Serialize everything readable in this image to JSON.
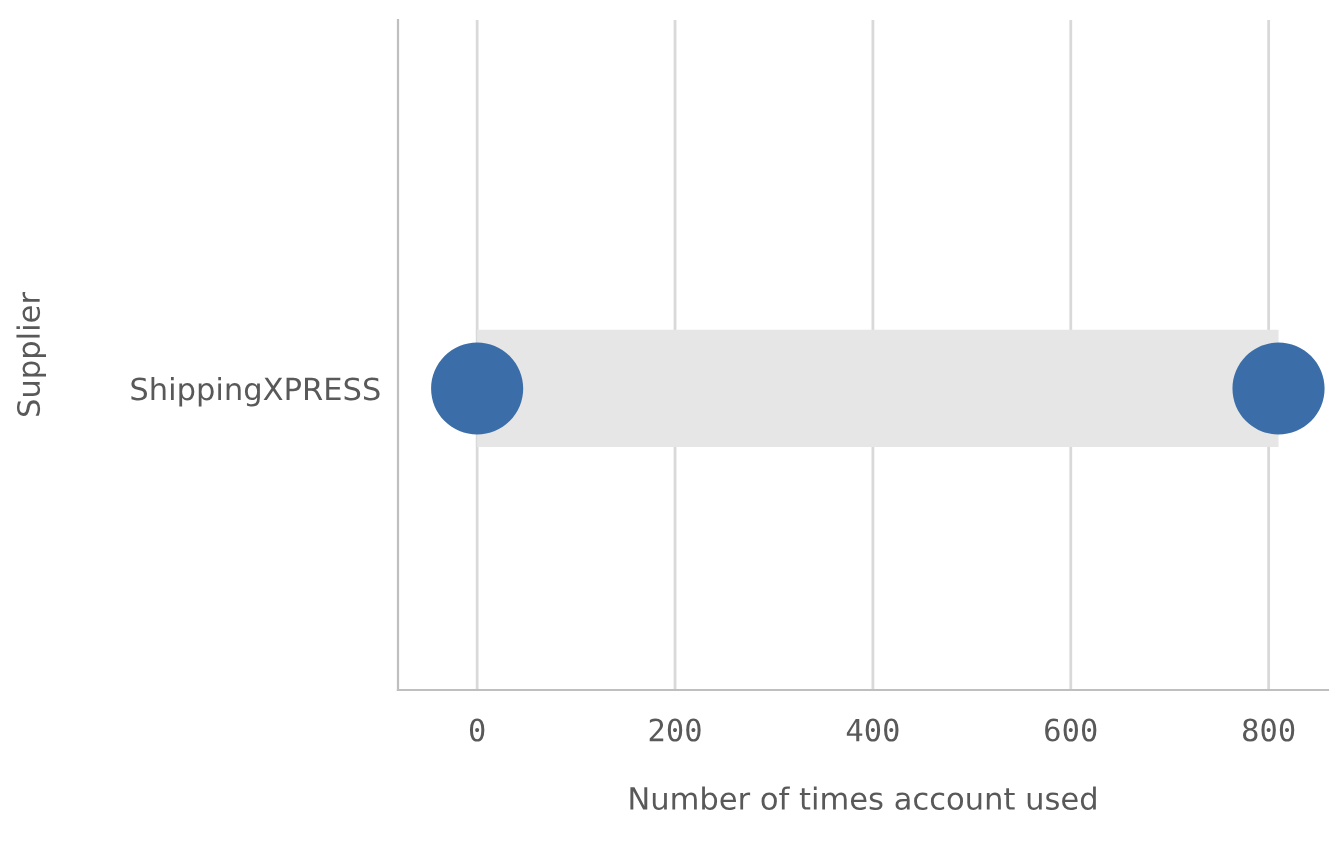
{
  "chart_data": {
    "type": "bar",
    "orientation": "horizontal",
    "xlabel": "Number of times account used",
    "ylabel": "Supplier",
    "categories": [
      "ShippingXPRESS"
    ],
    "series": [
      {
        "color": "#e6e6e6",
        "base": [
          0
        ],
        "values": [
          810
        ]
      },
      {
        "type": "scatter",
        "color": "#3b6ea8",
        "x": [
          "ShippingXPRESS",
          "ShippingXPRESS"
        ],
        "values": [
          0,
          810
        ]
      }
    ],
    "xlim": [
      -80,
      860
    ],
    "xticks": [
      0,
      200,
      400,
      600,
      800
    ],
    "grid": "x"
  }
}
